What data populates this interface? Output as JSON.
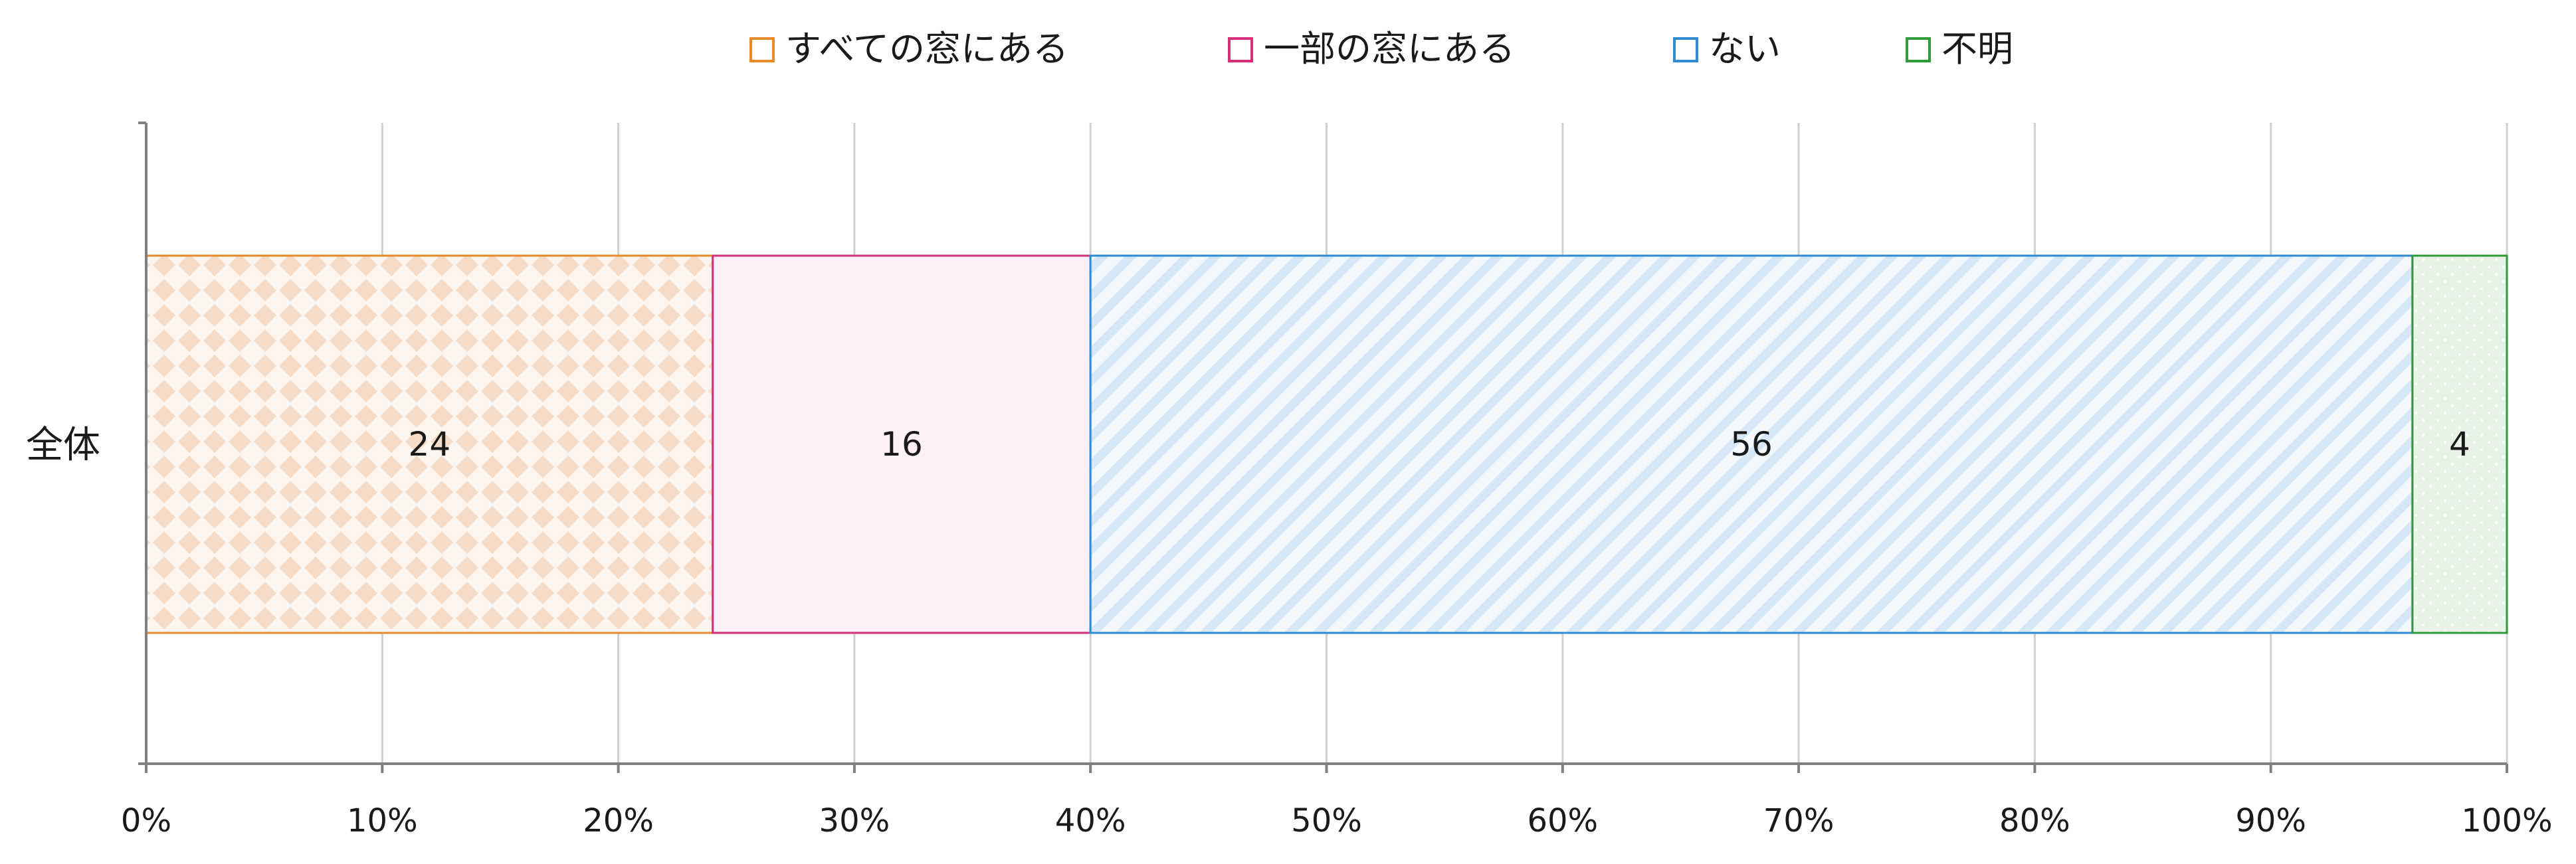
{
  "chart_data": {
    "type": "bar",
    "orientation": "horizontal",
    "stacked": "percent",
    "categories": [
      "全体"
    ],
    "series": [
      {
        "name": "すべての窓にある",
        "values": [
          24
        ],
        "color": "#E8892B",
        "fill": "#FBE9DA",
        "pattern": "diamond"
      },
      {
        "name": "一部の窓にある",
        "values": [
          16
        ],
        "color": "#D6307A",
        "fill": "#FDF0F6",
        "pattern": "solid"
      },
      {
        "name": "ない",
        "values": [
          56
        ],
        "color": "#2E8BD6",
        "fill": "#DCEBF8",
        "pattern": "diagonal"
      },
      {
        "name": "不明",
        "values": [
          4
        ],
        "color": "#2E9A3A",
        "fill": "#E6F2E4",
        "pattern": "dots"
      }
    ],
    "x_ticks": [
      "0%",
      "10%",
      "20%",
      "30%",
      "40%",
      "50%",
      "60%",
      "70%",
      "80%",
      "90%",
      "100%"
    ],
    "xlim": [
      0,
      100
    ],
    "grid": true,
    "legend_position": "top"
  }
}
